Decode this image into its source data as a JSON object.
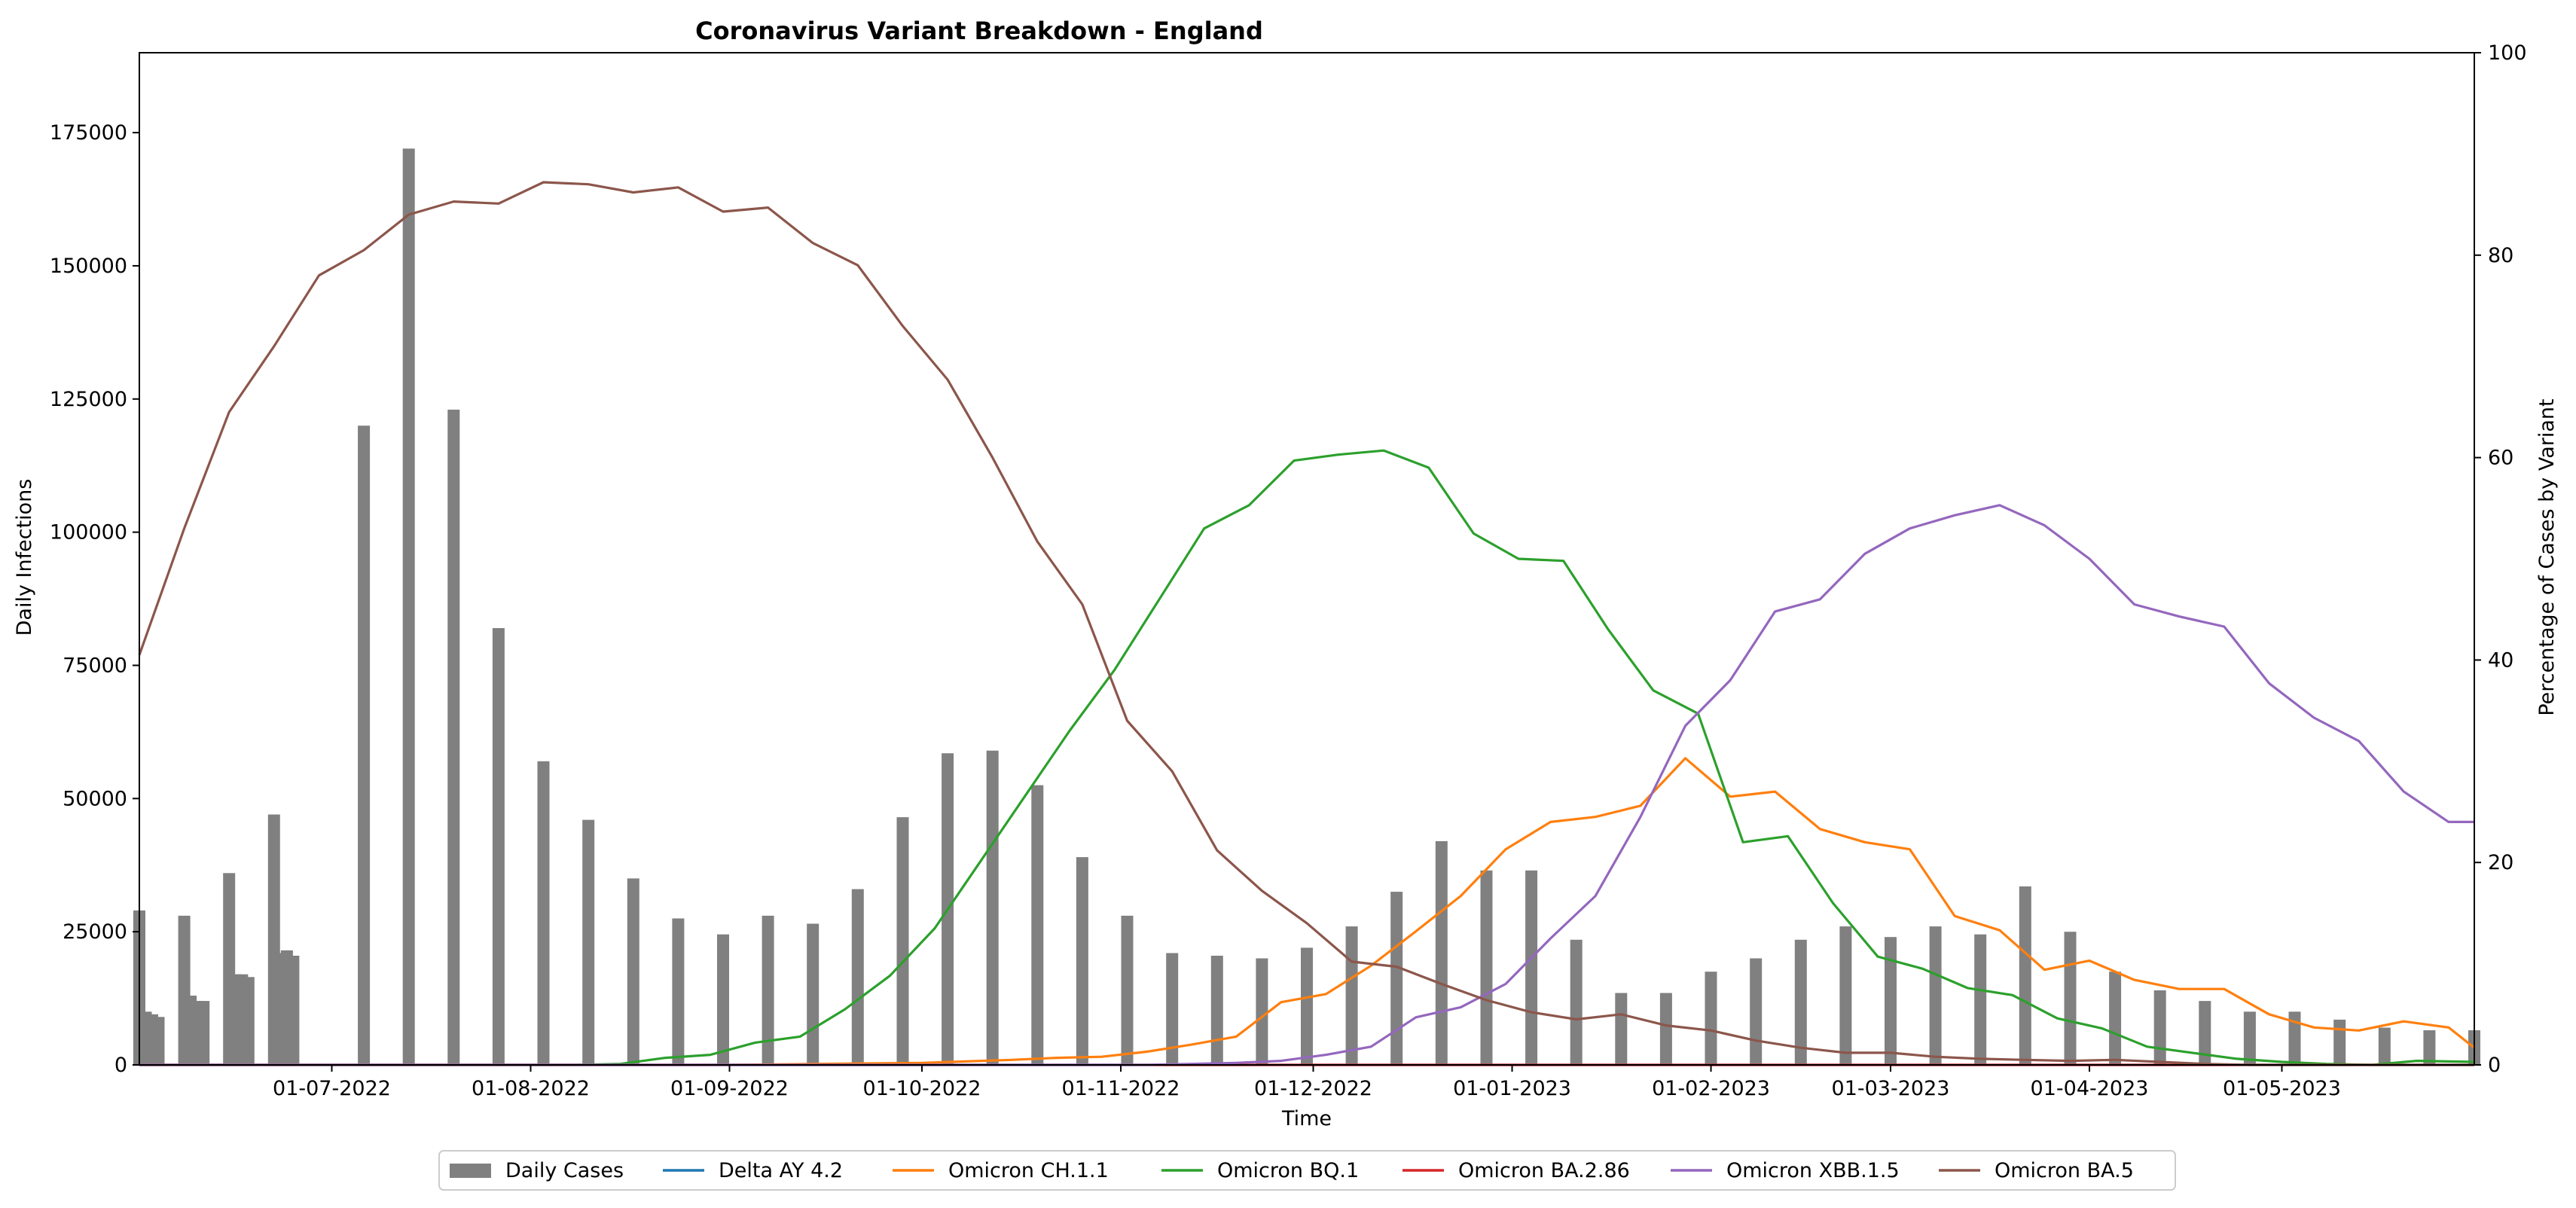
{
  "chart_data": {
    "type": "bar",
    "title": "Coronavirus Variant Breakdown - England",
    "xlabel": "Time",
    "ylabel": "Daily Infections",
    "y2label": "Percentage of Cases by Variant",
    "x_range": [
      "2022-06-01",
      "2023-05-31"
    ],
    "ylim": [
      0,
      190000
    ],
    "y2lim": [
      0,
      100
    ],
    "x_ticks": [
      "2022-07-01",
      "2022-08-01",
      "2022-09-01",
      "2022-10-01",
      "2022-11-01",
      "2022-12-01",
      "2023-01-01",
      "2023-02-01",
      "2023-03-01",
      "2023-04-01",
      "2023-05-01"
    ],
    "x_tick_labels": [
      "01-07-2022",
      "01-08-2022",
      "01-09-2022",
      "01-10-2022",
      "01-11-2022",
      "01-12-2022",
      "01-01-2023",
      "01-02-2023",
      "01-03-2023",
      "01-04-2023",
      "01-05-2023"
    ],
    "y_ticks": [
      0,
      25000,
      50000,
      75000,
      100000,
      125000,
      150000,
      175000
    ],
    "y_tick_labels": [
      "0",
      "25000",
      "50000",
      "75000",
      "100000",
      "125000",
      "150000",
      "175000"
    ],
    "y2_ticks": [
      0,
      20,
      40,
      60,
      80,
      100
    ],
    "y2_tick_labels": [
      "0",
      "20",
      "40",
      "60",
      "80",
      "100"
    ],
    "grid": false,
    "legend_position": "bottom-center",
    "legend": [
      {
        "label": "Daily Cases",
        "color": "#808080",
        "kind": "bar"
      },
      {
        "label": "Delta AY 4.2",
        "color": "#1f77b4",
        "kind": "line"
      },
      {
        "label": "Omicron CH.1.1",
        "color": "#ff7f0e",
        "kind": "line"
      },
      {
        "label": "Omicron BQ.1",
        "color": "#2ca02c",
        "kind": "line"
      },
      {
        "label": "Omicron BA.2.86",
        "color": "#d62728",
        "kind": "line"
      },
      {
        "label": "Omicron XBB.1.5",
        "color": "#9467bd",
        "kind": "line"
      },
      {
        "label": "Omicron BA.5",
        "color": "#8c564b",
        "kind": "line"
      }
    ],
    "bars": {
      "name": "Daily Cases",
      "color": "#808080",
      "x": [
        "2022-06-01",
        "2022-06-02",
        "2022-06-03",
        "2022-06-04",
        "2022-06-08",
        "2022-06-09",
        "2022-06-10",
        "2022-06-11",
        "2022-06-15",
        "2022-06-16",
        "2022-06-17",
        "2022-06-18",
        "2022-06-22",
        "2022-06-23",
        "2022-06-24",
        "2022-06-25",
        "2022-07-06",
        "2022-07-13",
        "2022-07-20",
        "2022-07-27",
        "2022-08-03",
        "2022-08-10",
        "2022-08-17",
        "2022-08-24",
        "2022-08-31",
        "2022-09-07",
        "2022-09-14",
        "2022-09-21",
        "2022-09-28",
        "2022-10-05",
        "2022-10-12",
        "2022-10-19",
        "2022-10-26",
        "2022-11-02",
        "2022-11-09",
        "2022-11-16",
        "2022-11-23",
        "2022-11-30",
        "2022-12-07",
        "2022-12-14",
        "2022-12-21",
        "2022-12-28",
        "2023-01-04",
        "2023-01-11",
        "2023-01-18",
        "2023-01-25",
        "2023-02-01",
        "2023-02-08",
        "2023-02-15",
        "2023-02-22",
        "2023-03-01",
        "2023-03-08",
        "2023-03-15",
        "2023-03-22",
        "2023-03-29",
        "2023-04-05",
        "2023-04-12",
        "2023-04-19",
        "2023-04-26",
        "2023-05-03",
        "2023-05-10",
        "2023-05-17",
        "2023-05-24",
        "2023-05-31"
      ],
      "values": [
        29000,
        10000,
        9500,
        9000,
        28000,
        13000,
        12000,
        12000,
        36000,
        17000,
        17000,
        16500,
        47000,
        21000,
        21500,
        20500,
        120000,
        172000,
        123000,
        82000,
        57000,
        46000,
        35000,
        27500,
        24500,
        28000,
        26500,
        33000,
        46500,
        58500,
        59000,
        52500,
        39000,
        28000,
        21000,
        20500,
        20000,
        22000,
        26000,
        32500,
        42000,
        36500,
        36500,
        23500,
        13500,
        13500,
        17500,
        20000,
        23500,
        26000,
        24000,
        26000,
        24500,
        33500,
        25000,
        17500,
        14000,
        12000,
        10000,
        10000,
        8500,
        7000,
        6500,
        6500
      ]
    },
    "series": [
      {
        "name": "Delta AY 4.2",
        "color": "#1f77b4",
        "x": [
          "2022-06-01",
          "2023-05-31"
        ],
        "y": [
          0,
          0
        ]
      },
      {
        "name": "Omicron CH.1.1",
        "color": "#ff7f0e",
        "x": [
          "2022-06-01",
          "2022-07-01",
          "2022-08-01",
          "2022-09-01",
          "2022-10-01",
          "2022-10-15",
          "2022-10-22",
          "2022-10-29",
          "2022-11-05",
          "2022-11-12",
          "2022-11-19",
          "2022-11-26",
          "2022-12-03",
          "2022-12-10",
          "2022-12-17",
          "2022-12-24",
          "2022-12-31",
          "2023-01-07",
          "2023-01-14",
          "2023-01-21",
          "2023-01-28",
          "2023-02-04",
          "2023-02-11",
          "2023-02-18",
          "2023-02-25",
          "2023-03-04",
          "2023-03-11",
          "2023-03-18",
          "2023-03-25",
          "2023-04-01",
          "2023-04-08",
          "2023-04-15",
          "2023-04-22",
          "2023-04-29",
          "2023-05-06",
          "2023-05-13",
          "2023-05-20",
          "2023-05-27",
          "2023-05-31"
        ],
        "y": [
          0,
          0,
          0,
          0,
          0.2,
          0.5,
          0.7,
          0.8,
          1.3,
          2.0,
          2.8,
          6.2,
          7.0,
          9.8,
          13.2,
          16.7,
          21.3,
          24.0,
          24.5,
          25.6,
          30.3,
          26.5,
          27.0,
          23.3,
          22.0,
          21.3,
          14.7,
          13.3,
          9.4,
          10.3,
          8.4,
          7.5,
          7.5,
          5.0,
          3.7,
          3.4,
          4.3,
          3.7,
          1.7
        ]
      },
      {
        "name": "Omicron BQ.1",
        "color": "#2ca02c",
        "x": [
          "2022-06-01",
          "2022-07-01",
          "2022-08-01",
          "2022-08-08",
          "2022-08-15",
          "2022-08-22",
          "2022-08-29",
          "2022-09-05",
          "2022-09-12",
          "2022-09-19",
          "2022-09-26",
          "2022-10-03",
          "2022-10-10",
          "2022-10-17",
          "2022-10-24",
          "2022-10-31",
          "2022-11-07",
          "2022-11-14",
          "2022-11-21",
          "2022-11-28",
          "2022-12-05",
          "2022-12-12",
          "2022-12-19",
          "2022-12-26",
          "2023-01-02",
          "2023-01-09",
          "2023-01-16",
          "2023-01-23",
          "2023-01-30",
          "2023-02-06",
          "2023-02-13",
          "2023-02-20",
          "2023-02-27",
          "2023-03-06",
          "2023-03-13",
          "2023-03-20",
          "2023-03-27",
          "2023-04-03",
          "2023-04-10",
          "2023-04-17",
          "2023-04-24",
          "2023-05-01",
          "2023-05-08",
          "2023-05-15",
          "2023-05-22",
          "2023-05-31"
        ],
        "y": [
          0,
          0,
          0,
          0,
          0.1,
          0.7,
          1.0,
          2.2,
          2.8,
          5.5,
          8.8,
          13.5,
          20.0,
          26.5,
          33.0,
          39.0,
          46.0,
          53.0,
          55.3,
          59.7,
          60.3,
          60.7,
          59.0,
          52.5,
          50.0,
          49.8,
          43.0,
          37.0,
          34.7,
          22.0,
          22.6,
          16.0,
          10.7,
          9.5,
          7.6,
          6.9,
          4.6,
          3.6,
          1.8,
          1.2,
          0.6,
          0.3,
          0.1,
          0,
          0.4,
          0.3
        ]
      },
      {
        "name": "Omicron BA.2.86",
        "color": "#d62728",
        "x": [
          "2022-06-01",
          "2023-05-31"
        ],
        "y": [
          0,
          0
        ]
      },
      {
        "name": "Omicron XBB.1.5",
        "color": "#9467bd",
        "x": [
          "2022-06-01",
          "2022-10-01",
          "2022-11-05",
          "2022-11-12",
          "2022-11-19",
          "2022-11-26",
          "2022-12-03",
          "2022-12-10",
          "2022-12-17",
          "2022-12-24",
          "2022-12-31",
          "2023-01-07",
          "2023-01-14",
          "2023-01-21",
          "2023-01-28",
          "2023-02-04",
          "2023-02-11",
          "2023-02-18",
          "2023-02-25",
          "2023-03-04",
          "2023-03-11",
          "2023-03-18",
          "2023-03-25",
          "2023-04-01",
          "2023-04-08",
          "2023-04-15",
          "2023-04-22",
          "2023-04-29",
          "2023-05-06",
          "2023-05-13",
          "2023-05-20",
          "2023-05-27",
          "2023-05-31"
        ],
        "y": [
          0,
          0,
          0,
          0.1,
          0.2,
          0.4,
          1.0,
          1.8,
          4.7,
          5.7,
          8.0,
          12.5,
          16.7,
          24.5,
          33.5,
          38.0,
          44.8,
          46.0,
          50.5,
          53.0,
          54.3,
          55.3,
          53.3,
          50.0,
          45.5,
          44.3,
          43.3,
          37.7,
          34.3,
          32.0,
          27.0,
          24.0,
          24.0
        ]
      },
      {
        "name": "Omicron BA.5",
        "color": "#8c564b",
        "x": [
          "2022-06-01",
          "2022-06-08",
          "2022-06-15",
          "2022-06-22",
          "2022-06-29",
          "2022-07-06",
          "2022-07-13",
          "2022-07-20",
          "2022-07-27",
          "2022-08-03",
          "2022-08-10",
          "2022-08-17",
          "2022-08-24",
          "2022-08-31",
          "2022-09-07",
          "2022-09-14",
          "2022-09-21",
          "2022-09-28",
          "2022-10-05",
          "2022-10-12",
          "2022-10-19",
          "2022-10-26",
          "2022-11-02",
          "2022-11-09",
          "2022-11-16",
          "2022-11-23",
          "2022-11-30",
          "2022-12-07",
          "2022-12-14",
          "2022-12-21",
          "2022-12-28",
          "2023-01-04",
          "2023-01-11",
          "2023-01-18",
          "2023-01-25",
          "2023-02-01",
          "2023-02-08",
          "2023-02-15",
          "2023-02-22",
          "2023-03-01",
          "2023-03-08",
          "2023-03-15",
          "2023-03-22",
          "2023-03-29",
          "2023-04-05",
          "2023-04-12",
          "2023-04-19",
          "2023-04-26",
          "2023-05-03",
          "2023-05-10",
          "2023-05-17",
          "2023-05-24",
          "2023-05-31"
        ],
        "y": [
          40.5,
          53.0,
          64.5,
          71.0,
          78.0,
          80.5,
          84.0,
          85.3,
          85.1,
          87.2,
          87.0,
          86.2,
          86.7,
          84.3,
          84.7,
          81.2,
          79.0,
          73.0,
          67.7,
          60.0,
          51.7,
          45.5,
          34.0,
          29.0,
          21.2,
          17.2,
          14.0,
          10.2,
          9.7,
          8.0,
          6.4,
          5.2,
          4.5,
          5.0,
          3.9,
          3.4,
          2.4,
          1.7,
          1.2,
          1.2,
          0.8,
          0.6,
          0.5,
          0.4,
          0.5,
          0.3,
          0.1,
          0,
          0,
          0,
          0,
          0,
          0
        ]
      }
    ]
  }
}
